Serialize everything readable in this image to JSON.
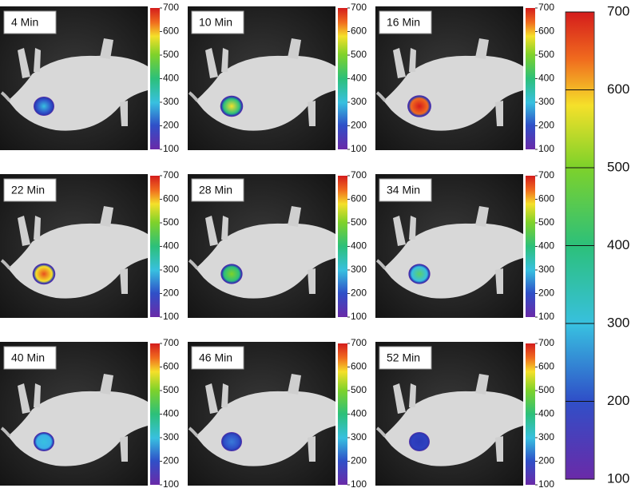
{
  "panels": [
    {
      "label": "4 Min"
    },
    {
      "label": "10 Min"
    },
    {
      "label": "16 Min"
    },
    {
      "label": "22 Min"
    },
    {
      "label": "28 Min"
    },
    {
      "label": "34 Min"
    },
    {
      "label": "40 Min"
    },
    {
      "label": "46 Min"
    },
    {
      "label": "52 Min"
    }
  ],
  "colorbar": {
    "ticks": [
      100,
      200,
      300,
      400,
      500,
      600,
      700
    ]
  },
  "large_colorbar": {
    "ticks": [
      100,
      200,
      300,
      400,
      500,
      600,
      700
    ]
  }
}
